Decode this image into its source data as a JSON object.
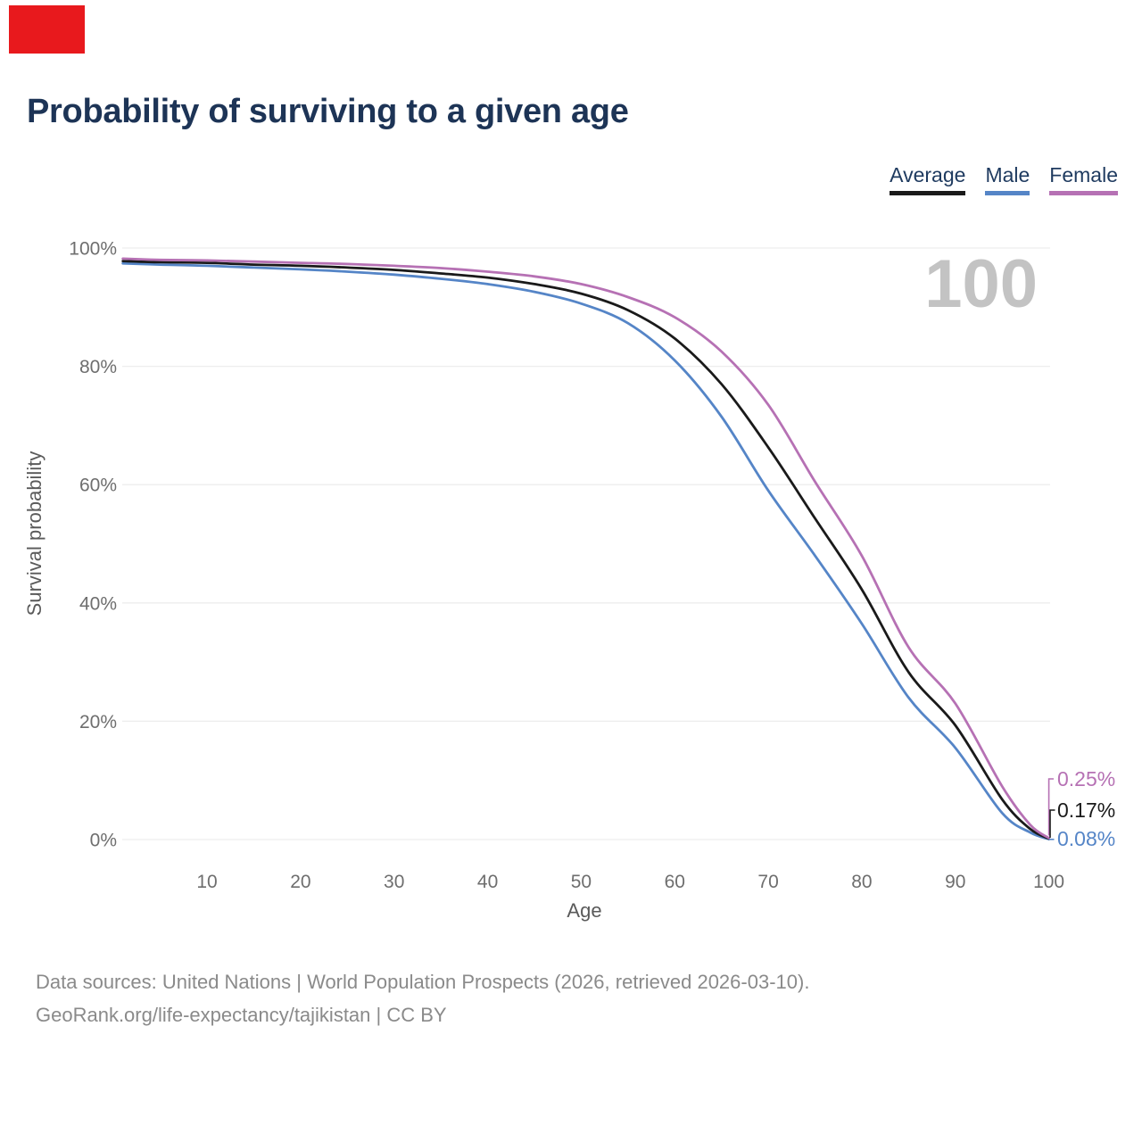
{
  "page": {
    "title": "Probability of surviving to a given age"
  },
  "header": {
    "red_marker_color": "#e8191d"
  },
  "legend": [
    {
      "label": "Average",
      "color": "#1a1a1a"
    },
    {
      "label": "Male",
      "color": "#5585c7"
    },
    {
      "label": "Female",
      "color": "#b671b4"
    }
  ],
  "chart_data": {
    "type": "line",
    "title": "Probability of surviving to a given age",
    "xlabel": "Age",
    "ylabel": "Survival probability",
    "xlim": [
      1,
      100
    ],
    "ylim": [
      0,
      100
    ],
    "grid": "horizontal",
    "legend_position": "top-right",
    "highlight_age": "100",
    "x_ticks": [
      10,
      20,
      30,
      40,
      50,
      60,
      70,
      80,
      90,
      100
    ],
    "y_ticks": [
      "0%",
      "20%",
      "40%",
      "60%",
      "80%",
      "100%"
    ],
    "x": [
      1,
      5,
      10,
      15,
      20,
      25,
      30,
      35,
      40,
      45,
      50,
      55,
      60,
      65,
      70,
      75,
      80,
      85,
      90,
      95,
      98,
      100
    ],
    "series": [
      {
        "name": "Average",
        "color": "#1a1a1a",
        "end_label": "0.17%",
        "values": [
          97.8,
          97.6,
          97.5,
          97.2,
          97.0,
          96.7,
          96.3,
          95.7,
          95.0,
          93.9,
          92.3,
          89.5,
          84.7,
          77.0,
          66.3,
          54.3,
          42.3,
          28.3,
          19.3,
          6.8,
          1.8,
          0.17
        ]
      },
      {
        "name": "Male",
        "color": "#5585c7",
        "end_label": "0.08%",
        "values": [
          97.4,
          97.2,
          97.0,
          96.7,
          96.4,
          96.0,
          95.5,
          94.8,
          93.9,
          92.6,
          90.6,
          87.3,
          81.0,
          71.5,
          59.0,
          48.0,
          36.5,
          24.0,
          15.5,
          4.5,
          1.2,
          0.08
        ]
      },
      {
        "name": "Female",
        "color": "#b671b4",
        "end_label": "0.25%",
        "values": [
          98.2,
          98.0,
          97.9,
          97.7,
          97.5,
          97.3,
          97.0,
          96.6,
          96.0,
          95.2,
          93.9,
          91.7,
          88.3,
          82.5,
          73.5,
          60.5,
          48.0,
          32.5,
          23.0,
          9.0,
          2.5,
          0.25
        ]
      }
    ]
  },
  "footer": {
    "line1": "Data sources: United Nations | World Population Prospects (2026, retrieved 2026-03-10).",
    "line2": "GeoRank.org/life-expectancy/tajikistan | CC BY"
  }
}
